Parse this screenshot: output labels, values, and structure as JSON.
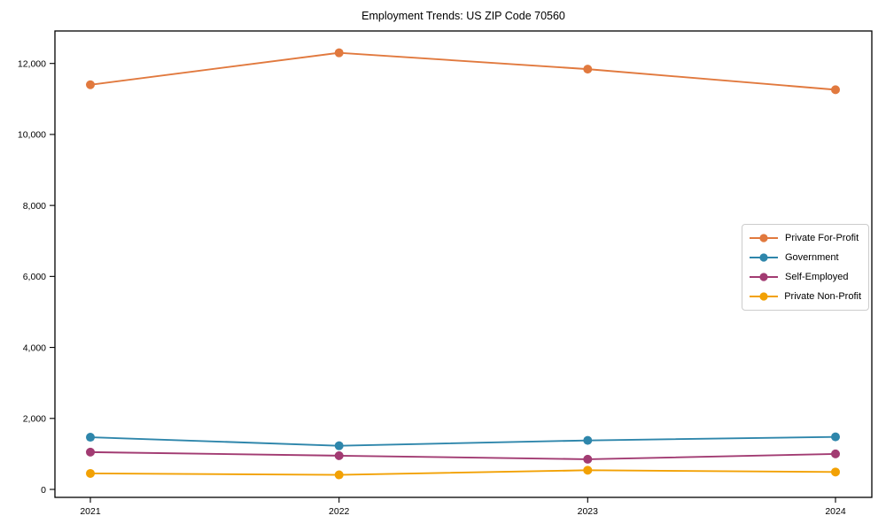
{
  "figure": {
    "background_color": "#ffffff",
    "axes_edge_color": "#000000",
    "tick_label_color": "#000000"
  },
  "chart_data": {
    "type": "line",
    "title": "Employment Trends: US ZIP Code 70560",
    "xlabel": "",
    "ylabel": "",
    "categories": [
      "2021",
      "2022",
      "2023",
      "2024"
    ],
    "series": [
      {
        "name": "Private For-Profit",
        "color": "#E1793E",
        "values": [
          11400,
          12300,
          11840,
          11260
        ]
      },
      {
        "name": "Government",
        "color": "#2E86AB",
        "values": [
          1470,
          1230,
          1380,
          1480
        ]
      },
      {
        "name": "Self-Employed",
        "color": "#A23B72",
        "values": [
          1050,
          950,
          850,
          1000
        ]
      },
      {
        "name": "Private Non-Profit",
        "color": "#F2A104",
        "values": [
          450,
          410,
          540,
          490
        ]
      }
    ],
    "ylim": [
      0,
      12000
    ],
    "ytick_step": 2000,
    "ytick_labels": [
      "0",
      "2,000",
      "4,000",
      "6,000",
      "8,000",
      "10,000",
      "12,000"
    ],
    "xtick_labels": [
      "2021",
      "2022",
      "2023",
      "2024"
    ],
    "grid": false,
    "marker": "circle",
    "legend_position": "center-right"
  }
}
